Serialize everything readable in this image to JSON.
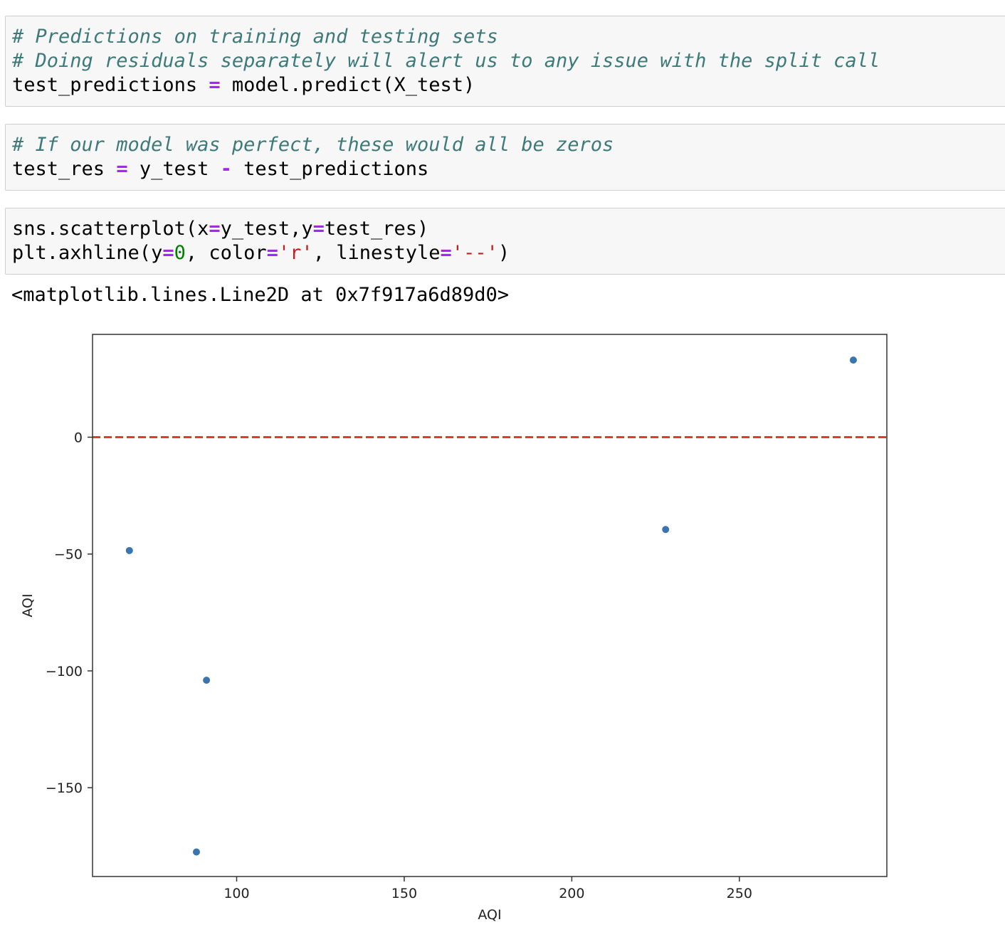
{
  "cells": [
    {
      "lines": [
        [
          {
            "t": "# Predictions on training and testing sets",
            "c": "cm"
          }
        ],
        [
          {
            "t": "# Doing residuals separately will alert us to any issue with the split call",
            "c": "cm"
          }
        ],
        [
          {
            "t": "test_predictions "
          },
          {
            "t": "=",
            "c": "op"
          },
          {
            "t": " model.predict(X_test)"
          }
        ]
      ]
    },
    {
      "lines": [
        [
          {
            "t": "# If our model was perfect, these would all be zeros",
            "c": "cm"
          }
        ],
        [
          {
            "t": "test_res "
          },
          {
            "t": "=",
            "c": "op"
          },
          {
            "t": " y_test "
          },
          {
            "t": "-",
            "c": "op"
          },
          {
            "t": " test_predictions"
          }
        ]
      ]
    },
    {
      "lines": [
        [
          {
            "t": "sns.scatterplot(x"
          },
          {
            "t": "=",
            "c": "op"
          },
          {
            "t": "y_test,y"
          },
          {
            "t": "=",
            "c": "op"
          },
          {
            "t": "test_res)"
          }
        ],
        [
          {
            "t": "plt.axhline(y"
          },
          {
            "t": "=",
            "c": "op"
          },
          {
            "t": "0",
            "c": "num"
          },
          {
            "t": ", color"
          },
          {
            "t": "=",
            "c": "op"
          },
          {
            "t": "'r'",
            "c": "str"
          },
          {
            "t": ", linestyle"
          },
          {
            "t": "=",
            "c": "op"
          },
          {
            "t": "'--'",
            "c": "str"
          },
          {
            "t": ")"
          }
        ]
      ]
    }
  ],
  "output_text": "<matplotlib.lines.Line2D at 0x7f917a6d89d0>",
  "chart_data": {
    "type": "scatter",
    "xlabel": "AQI",
    "ylabel": "AQI",
    "xlim": [
      57,
      294
    ],
    "ylim": [
      -188,
      44
    ],
    "xticks": [
      100,
      150,
      200,
      250
    ],
    "yticks": [
      0,
      -50,
      -100,
      -150
    ],
    "xtick_labels": [
      "100",
      "150",
      "200",
      "250"
    ],
    "ytick_labels": [
      "0",
      "−50",
      "−100",
      "−150"
    ],
    "grid": false,
    "points": [
      {
        "x": 68,
        "y": -48.5
      },
      {
        "x": 88,
        "y": -177.5
      },
      {
        "x": 91,
        "y": -104
      },
      {
        "x": 228,
        "y": -39.5
      },
      {
        "x": 284,
        "y": 33
      }
    ],
    "hline": {
      "y": 0,
      "color": "#e03b2f",
      "style": "dashed"
    },
    "point_color": "#3a75b0"
  }
}
